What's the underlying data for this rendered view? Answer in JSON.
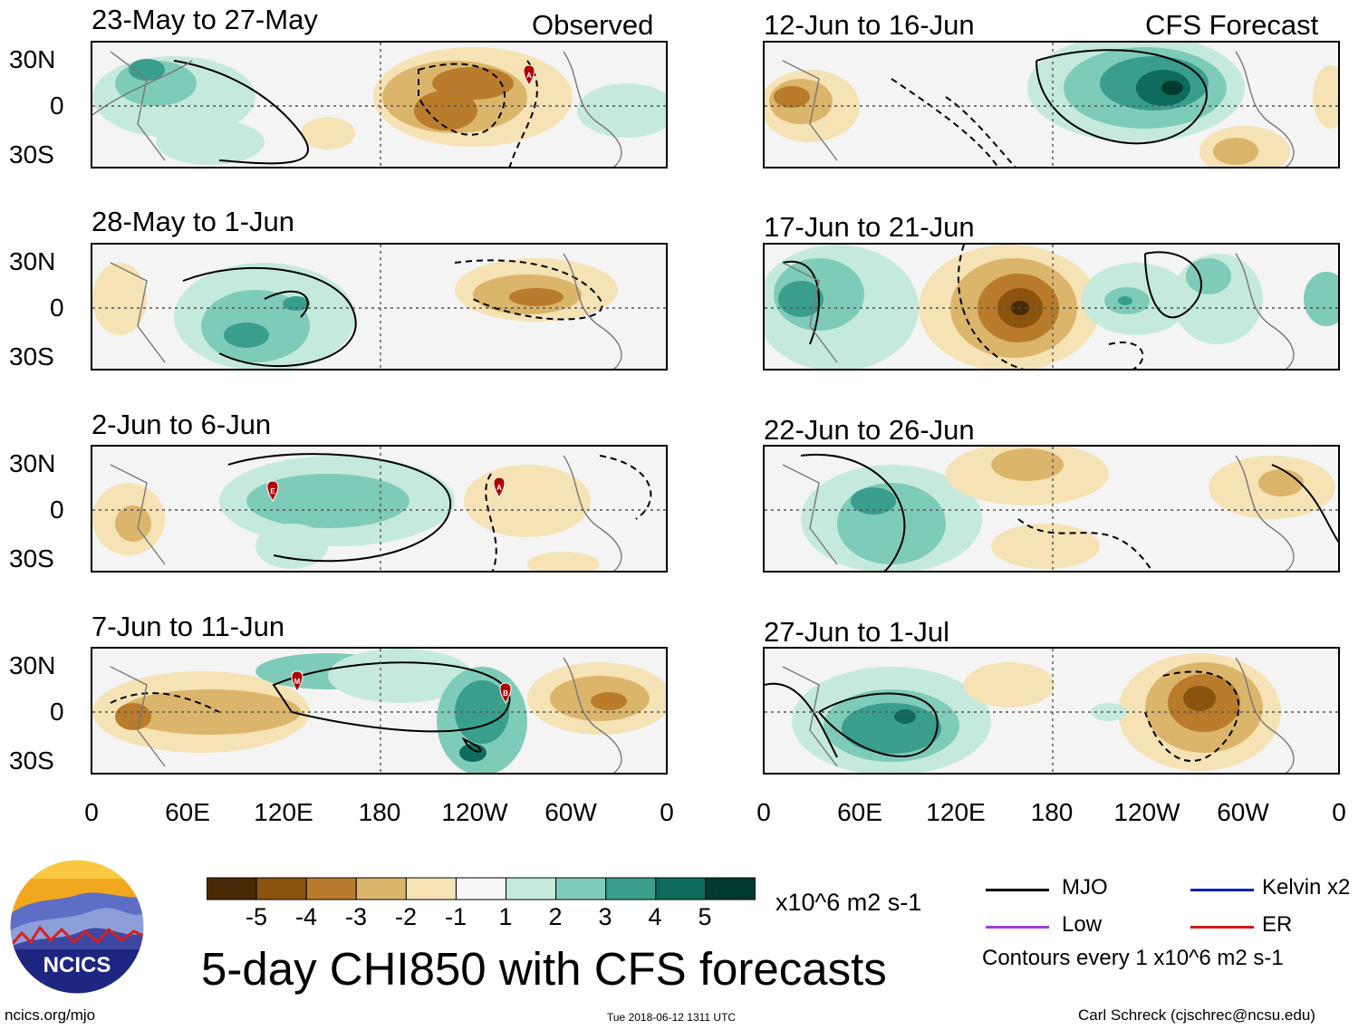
{
  "title": "5-day CHI850 with CFS forecasts",
  "observed_label": "Observed",
  "forecast_label": "CFS Forecast",
  "lat_labels": [
    "30N",
    "0",
    "30S"
  ],
  "lon_labels": [
    "0",
    "60E",
    "120E",
    "180",
    "120W",
    "60W",
    "0"
  ],
  "panels": [
    {
      "title": "23-May to 27-May"
    },
    {
      "title": "28-May to 1-Jun"
    },
    {
      "title": "2-Jun to 6-Jun"
    },
    {
      "title": "7-Jun to 11-Jun"
    },
    {
      "title": "12-Jun to 16-Jun"
    },
    {
      "title": "17-Jun to 21-Jun"
    },
    {
      "title": "22-Jun to 26-Jun"
    },
    {
      "title": "27-Jun to 1-Jul"
    }
  ],
  "colorbar": {
    "units": "x10^6 m2 s-1",
    "tick_labels": [
      "-5",
      "-4",
      "-3",
      "-2",
      "-1",
      "1",
      "2",
      "3",
      "4",
      "5"
    ],
    "colors": [
      "#4a2a06",
      "#8a5410",
      "#b97c2c",
      "#dcb56c",
      "#f5e2b5",
      "#f7f7f7",
      "#c5eadd",
      "#7fcbb9",
      "#3a9e8d",
      "#0e6b5e",
      "#003b30"
    ]
  },
  "legend": {
    "mjo": "MJO",
    "kelvin": "Kelvin x2",
    "low": "Low",
    "er": "ER",
    "contours": "Contours every 1 x10^6 m2 s-1",
    "colors": {
      "mjo": "#000000",
      "kelvin": "#1020c8",
      "low": "#9a40d8",
      "er": "#d01818"
    }
  },
  "markers": {
    "a": "A",
    "e": "E",
    "m": "M",
    "b": "B"
  },
  "footer": {
    "url": "ncics.org/mjo",
    "timestamp": "Tue 2018-06-12 1311 UTC",
    "credit": "Carl Schreck (cjschrec@ncsu.edu)"
  },
  "logo_text": "NCICS"
}
